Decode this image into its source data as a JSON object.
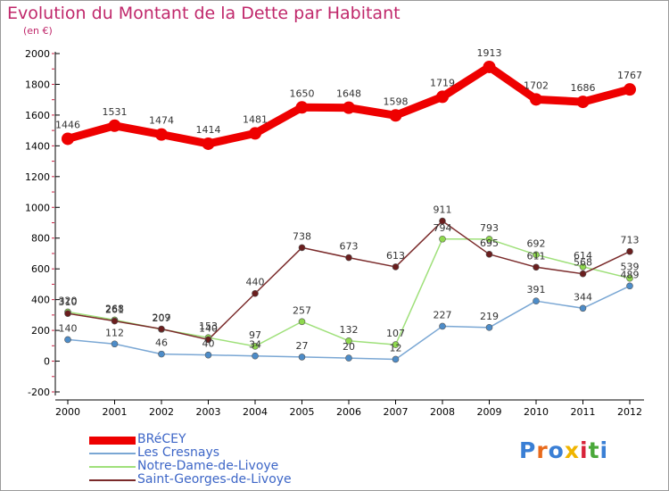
{
  "title": "Evolution du Montant de la Dette par Habitant",
  "unit": "(en €)",
  "logo": "Proxiti",
  "colors": {
    "title": "#c0286b",
    "axis": "#000000",
    "grid_tick": "#cc2244",
    "legend_text": "#3d66c7"
  },
  "chart_data": {
    "type": "line",
    "title": "Evolution du Montant de la Dette par Habitant",
    "ylabel": "(en €)",
    "xlabel": "",
    "x": [
      "2000",
      "2001",
      "2002",
      "2003",
      "2004",
      "2005",
      "2006",
      "2007",
      "2008",
      "2009",
      "2010",
      "2011",
      "2012"
    ],
    "ylim": [
      -200,
      2000
    ],
    "yticks": [
      -200,
      0,
      200,
      400,
      600,
      800,
      1000,
      1200,
      1400,
      1600,
      1800,
      2000
    ],
    "legend_position": "bottom-left",
    "series": [
      {
        "name": "BRéCEY",
        "color": "#ee0000",
        "values": [
          1446,
          1531,
          1474,
          1414,
          1481,
          1650,
          1648,
          1598,
          1719,
          1913,
          1702,
          1686,
          1767
        ]
      },
      {
        "name": "Les Cresnays",
        "color": "#7aa7d4",
        "values": [
          140,
          112,
          46,
          40,
          34,
          27,
          20,
          12,
          227,
          219,
          391,
          344,
          489
        ]
      },
      {
        "name": "Notre-Dame-de-Livoye",
        "color": "#9fe07a",
        "values": [
          320,
          268,
          207,
          153,
          97,
          257,
          132,
          107,
          794,
          793,
          692,
          614,
          539
        ]
      },
      {
        "name": "Saint-Georges-de-Livoye",
        "color": "#7a2a2a",
        "values": [
          310,
          261,
          209,
          140,
          440,
          738,
          673,
          613,
          911,
          695,
          611,
          568,
          713
        ]
      }
    ]
  }
}
